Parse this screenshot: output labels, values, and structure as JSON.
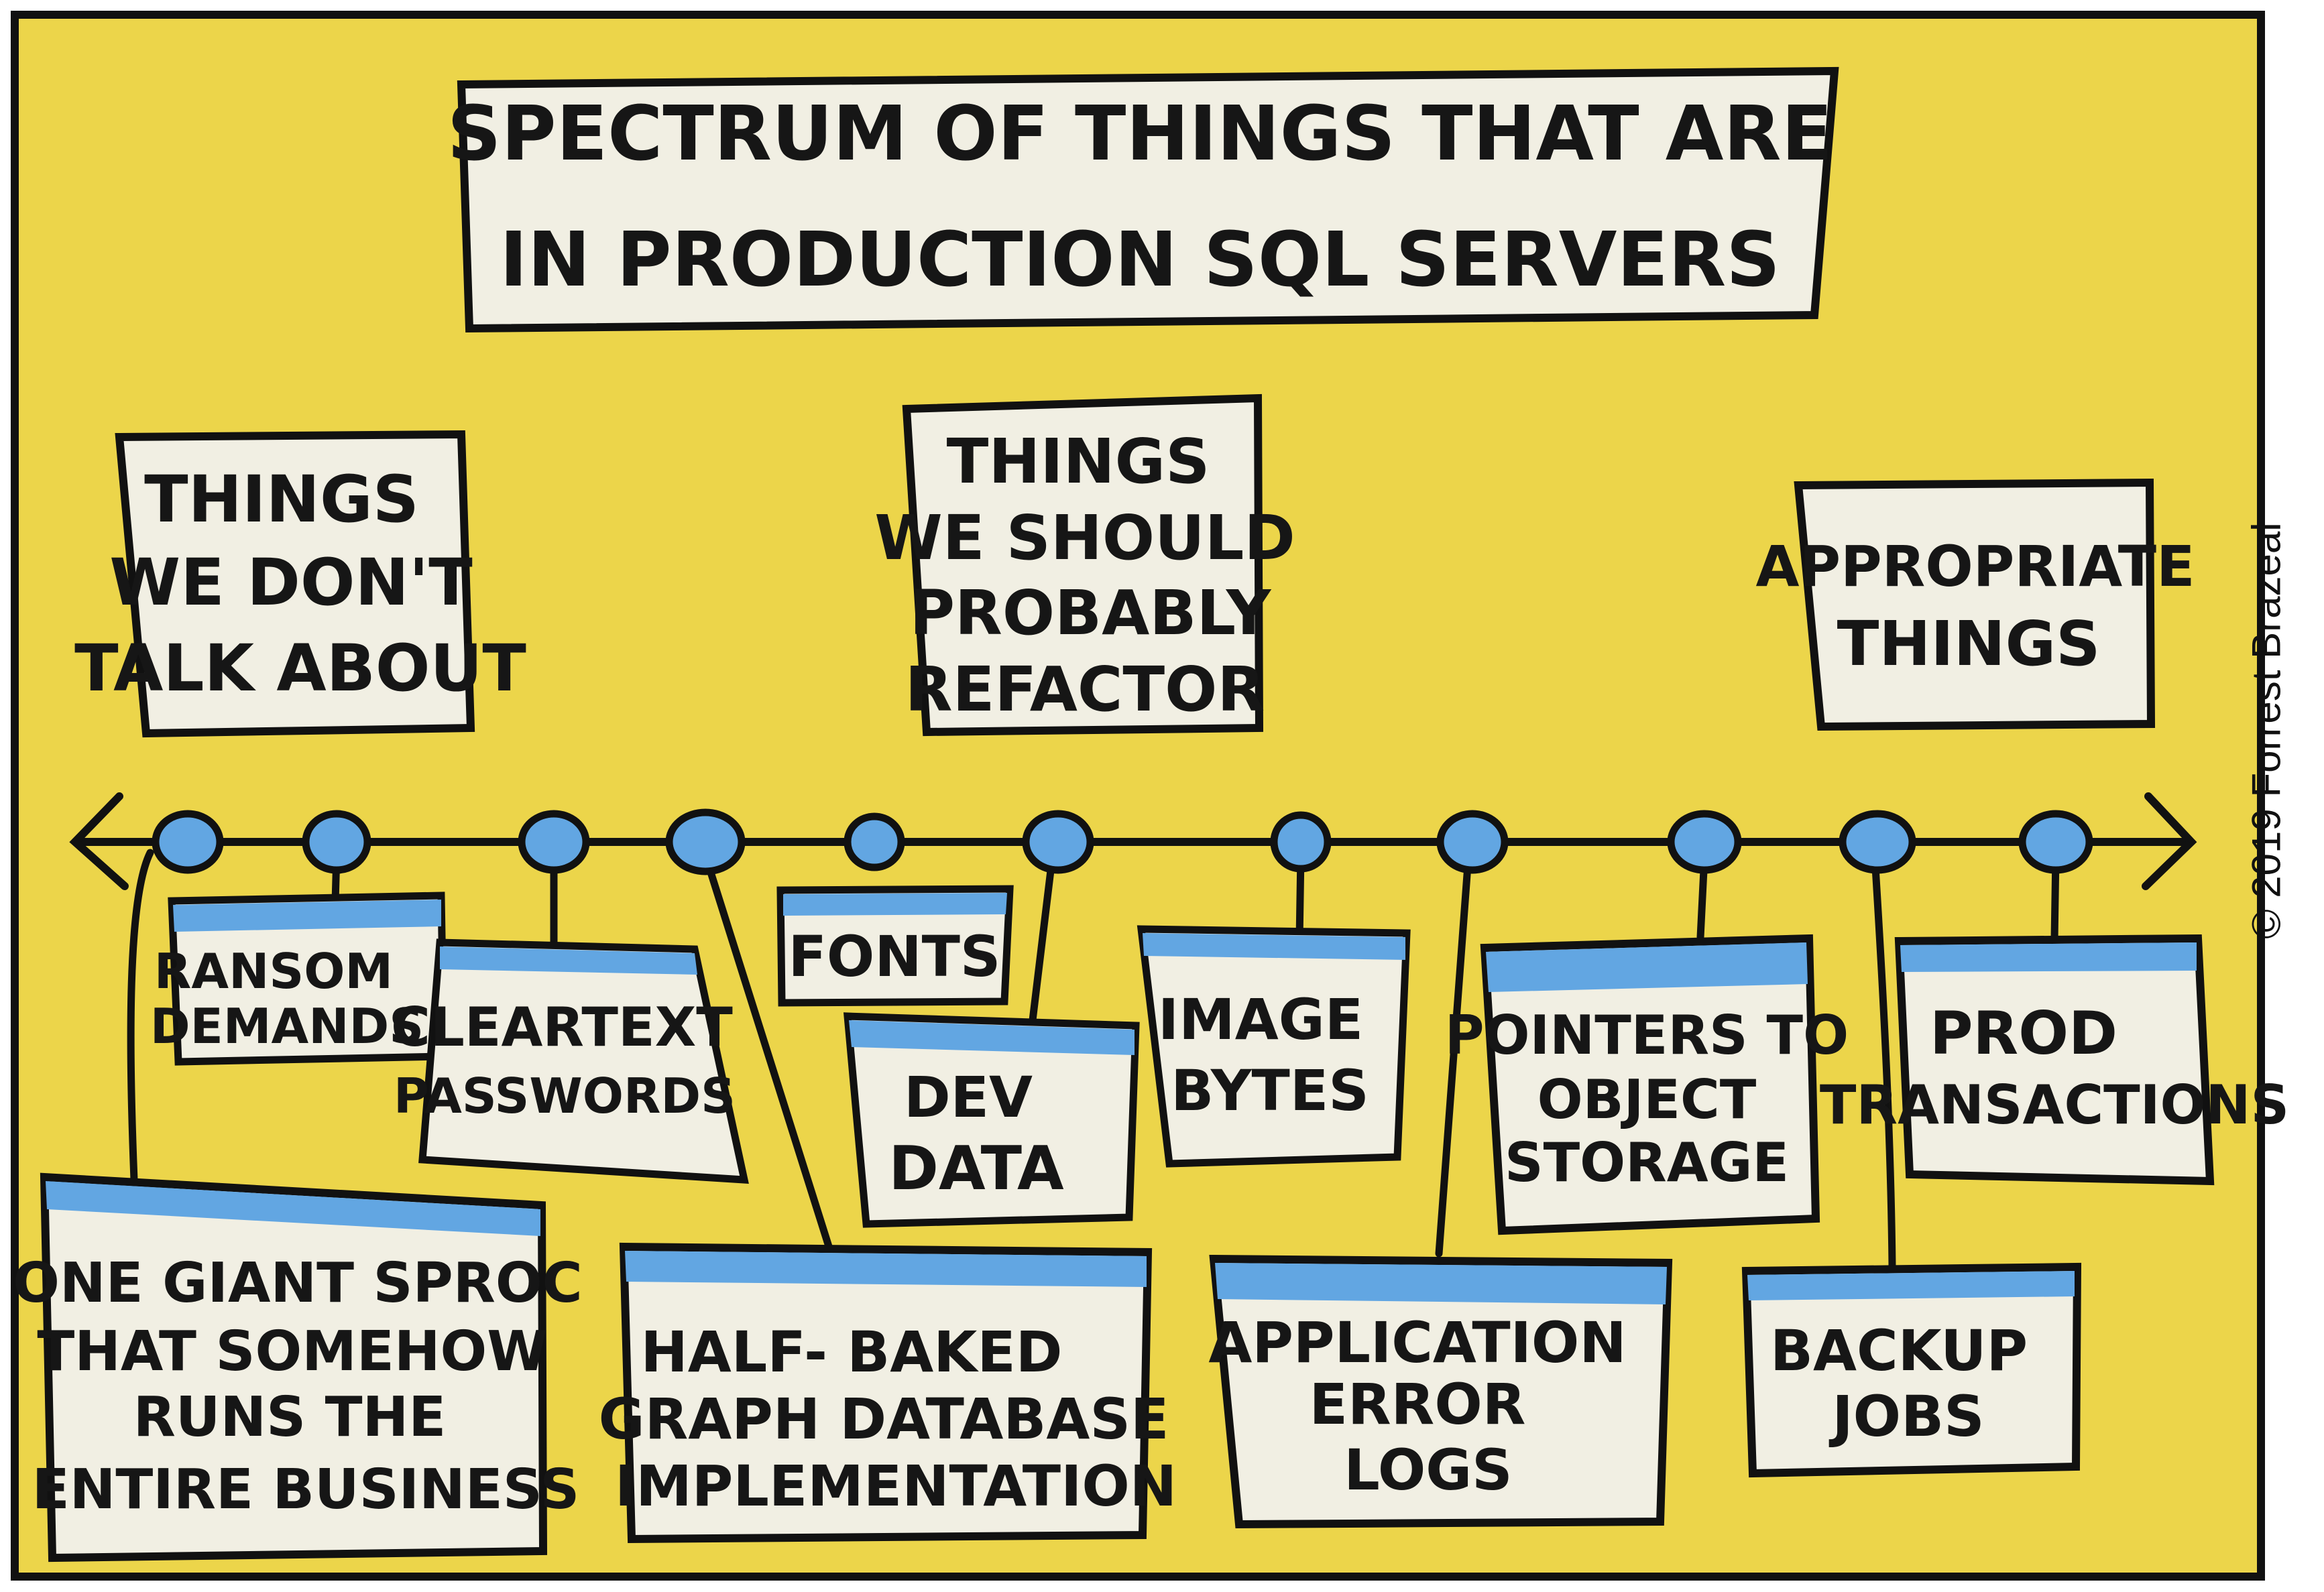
{
  "colors": {
    "background": "#ecd54a",
    "panel": "#f1efe3",
    "accent_blue": "#62a6e2",
    "ink": "#161616"
  },
  "title": {
    "line1": "SPECTRUM OF THINGS THAT ARE",
    "line2": "IN PRODUCTION SQL SERVERS"
  },
  "categories": {
    "left": [
      "THINGS",
      "WE DON'T",
      "TALK ABOUT"
    ],
    "middle": [
      "THINGS",
      "WE SHOULD",
      "PROBABLY",
      "REFACTOR"
    ],
    "right": [
      "APPROPRIATE",
      "THINGS"
    ]
  },
  "items": {
    "ransom": [
      "RANSOM",
      "DEMANDS"
    ],
    "passwords": [
      "CLEARTEXT",
      "PASSWORDS"
    ],
    "sproc": [
      "ONE GIANT SPROC",
      "THAT SOMEHOW",
      "RUNS THE",
      "ENTIRE BUSINESS"
    ],
    "fonts": [
      "FONTS"
    ],
    "devdata": [
      "DEV",
      "DATA"
    ],
    "graph": [
      "HALF- BAKED",
      "GRAPH DATABASE",
      "IMPLEMENTATION"
    ],
    "image": [
      "IMAGE",
      "BYTES"
    ],
    "applogs": [
      "APPLICATION",
      "ERROR",
      "LOGS"
    ],
    "pointers": [
      "POINTERS TO",
      "OBJECT",
      "STORAGE"
    ],
    "backup": [
      "BACKUP",
      "JOBS"
    ],
    "prod": [
      "PROD",
      "TRANSACTIONS"
    ]
  },
  "credit": "© 2019 Forrest Brazeal"
}
